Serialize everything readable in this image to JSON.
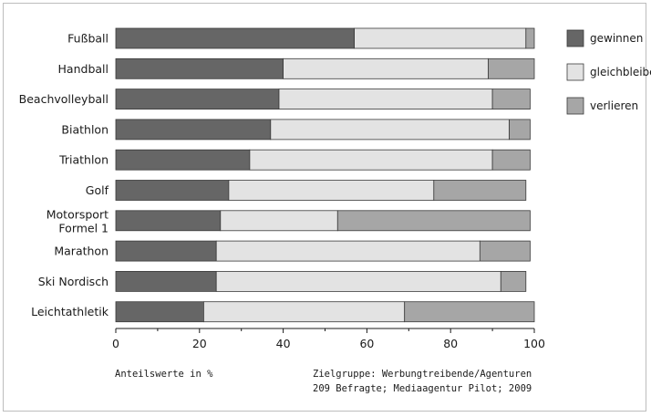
{
  "chart_data": {
    "type": "bar",
    "orientation": "horizontal",
    "stacked": true,
    "categories": [
      [
        "Fußball"
      ],
      [
        "Handball"
      ],
      [
        "Beachvolleyball"
      ],
      [
        "Biathlon"
      ],
      [
        "Triathlon"
      ],
      [
        "Golf"
      ],
      [
        "Motorsport",
        "Formel 1"
      ],
      [
        "Marathon"
      ],
      [
        "Ski Nordisch"
      ],
      [
        "Leichtathletik"
      ]
    ],
    "series": [
      {
        "name": "gewinnen",
        "color": "#666666",
        "values": [
          57,
          40,
          39,
          37,
          32,
          27,
          25,
          24,
          24,
          21
        ]
      },
      {
        "name": "gleichbleibe",
        "color": "#e3e3e3",
        "values": [
          41,
          49,
          51,
          57,
          58,
          49,
          28,
          63,
          68,
          48
        ]
      },
      {
        "name": "verlieren",
        "color": "#a6a6a6",
        "values": [
          2,
          11,
          9,
          5,
          9,
          22,
          46,
          12,
          6,
          31
        ]
      }
    ],
    "xlim": [
      0,
      100
    ],
    "xticks": [
      0,
      20,
      40,
      60,
      80,
      100
    ],
    "legend": "top-right",
    "grid": false
  },
  "footer": {
    "left": "Anteilswerte in %",
    "right_line1": "Zielgruppe: Werbungtreibende/Agenturen",
    "right_line2": "209 Befragte; Mediaagentur Pilot; 2009"
  }
}
